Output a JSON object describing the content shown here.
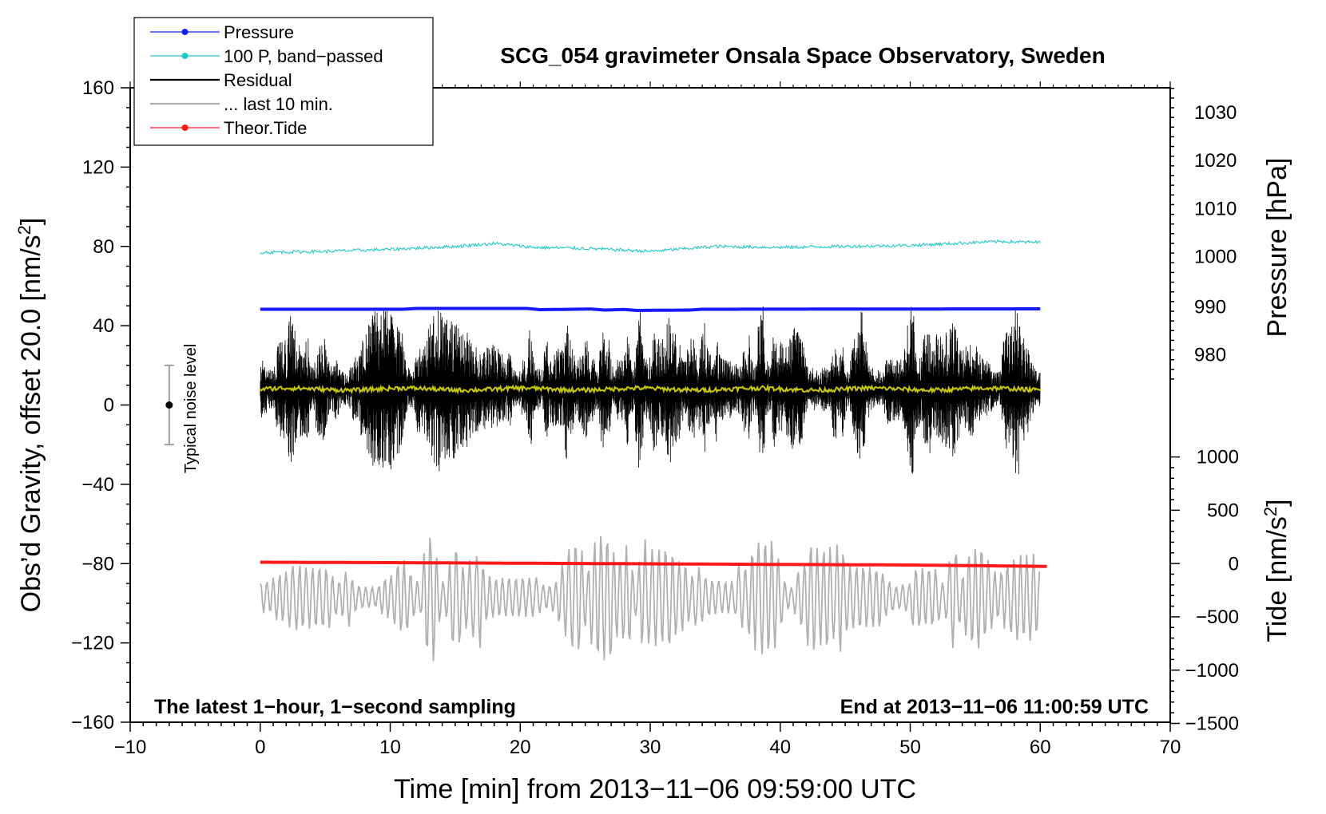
{
  "chart_data": {
    "type": "line",
    "title": "SCG_054 gravimeter Onsala Space Observatory, Sweden",
    "xlabel": "Time [min] from 2013−11−06 09:59:00 UTC",
    "ylabel_left_main": "Obs’d Gravity, offset 20.0 [nm/s",
    "ylabel_left_sup": "2",
    "ylabel_left_end": "]",
    "ylabel_right_pressure": "Pressure [hPa]",
    "ylabel_right_tide_main": "Tide [nm/s",
    "ylabel_right_tide_sup": "2",
    "ylabel_right_tide_end": "]",
    "xlim": [
      -10,
      70
    ],
    "ylim": [
      -160,
      160
    ],
    "x_ticks": [
      "−10",
      "0",
      "10",
      "20",
      "30",
      "40",
      "50",
      "60",
      "70"
    ],
    "x_tick_values": [
      -10,
      0,
      10,
      20,
      30,
      40,
      50,
      60,
      70
    ],
    "y_ticks": [
      "160",
      "120",
      "80",
      "40",
      "0",
      "−40",
      "−80",
      "−120",
      "−160"
    ],
    "y_tick_values": [
      160,
      120,
      80,
      40,
      0,
      -40,
      -80,
      -120,
      -160
    ],
    "pressure_axis": {
      "ticks": [
        "1030",
        "1020",
        "1010",
        "1000",
        "990",
        "980"
      ],
      "values": [
        1030,
        1020,
        1010,
        1000,
        990,
        980
      ],
      "gravity_equiv": [
        147.5,
        123.3,
        99.1,
        74.9,
        49.6,
        25.3
      ]
    },
    "tide_axis": {
      "ticks": [
        "1000",
        "500",
        "0",
        "−500",
        "−1000",
        "−1500"
      ],
      "values": [
        1000,
        500,
        0,
        -500,
        -1000,
        -1500
      ],
      "gravity_equiv": [
        -26.2,
        -53.1,
        -80,
        -106.9,
        -133.8,
        -160.6
      ]
    },
    "annotation_left": "The latest 1−hour, 1−second sampling",
    "annotation_right": "End at 2013−11−06 11:00:59 UTC",
    "noise_label": "Typical noise level",
    "noise_bar": {
      "x": -7,
      "center": 0,
      "low": -20,
      "high": 20
    },
    "legend_position": "top-left",
    "legend": [
      {
        "label": "Pressure",
        "color": "#1a1aff",
        "style": "line-dot"
      },
      {
        "label": "100 P, band−passed",
        "color": "#20c8c8",
        "style": "line-dot"
      },
      {
        "label": "Residual",
        "color": "#000000",
        "style": "line"
      },
      {
        "label": "... last 10 min.",
        "color": "#b0b0b0",
        "style": "line"
      },
      {
        "label": "Theor.Tide",
        "color": "#ff1a1a",
        "style": "line-dot"
      }
    ],
    "series": [
      {
        "name": "Pressure",
        "color": "#1a1aff",
        "x": [
          0,
          11,
          12,
          20.5,
          21.5,
          25.5,
          26.5,
          28,
          29,
          33,
          34,
          60
        ],
        "values": [
          48.3,
          48.3,
          48.7,
          48.7,
          48.1,
          48.4,
          47.9,
          48.2,
          47.7,
          47.9,
          48.3,
          48.5
        ]
      },
      {
        "name": "100 P, band−passed",
        "color": "#20c8c8",
        "x": [
          0,
          5,
          10,
          15,
          18,
          21,
          25,
          30,
          35,
          40,
          45,
          50,
          55,
          57,
          60
        ],
        "values": [
          77,
          77.5,
          78.5,
          80,
          81.5,
          79.5,
          79,
          77.5,
          80,
          79.5,
          80,
          80.5,
          82,
          82.5,
          82
        ]
      },
      {
        "name": "Residual",
        "color": "#000000",
        "x_range": [
          0,
          60
        ],
        "mean": 8,
        "envelope": 35
      },
      {
        "name": "Residual smoothed",
        "color": "#c8c800",
        "x_range": [
          0,
          60
        ],
        "values": [
          8,
          8
        ]
      },
      {
        "name": "... last 10 min.",
        "color": "#b0b0b0",
        "x_range": [
          0,
          60
        ],
        "mean": -95,
        "envelope": 30
      },
      {
        "name": "Theor.Tide",
        "color": "#ff1a1a",
        "x": [
          0,
          10,
          20,
          30,
          40,
          50,
          56,
          60.5
        ],
        "values": [
          -79.3,
          -79.5,
          -79.8,
          -80.1,
          -80.4,
          -80.7,
          -81.1,
          -81.4
        ]
      }
    ]
  },
  "colors": {
    "pressure": "#1a1aff",
    "band_passed": "#20c8c8",
    "residual": "#000000",
    "residual_smooth": "#c8c800",
    "last10": "#b0b0b0",
    "tide": "#ff1a1a",
    "noise_bar": "#a0a0a0"
  }
}
